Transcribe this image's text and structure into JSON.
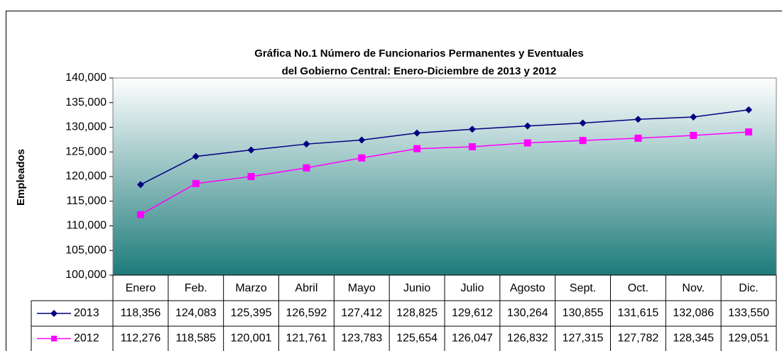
{
  "chart_data": {
    "type": "line",
    "title": "Gráfica No.1 Número de Funcionarios  Permanentes y Eventuales",
    "subtitle": "del Gobierno Central: Enero-Diciembre de 2013 y 2012",
    "y_label": "Empleados",
    "categories": [
      "Enero",
      "Feb.",
      "Marzo",
      "Abril",
      "Mayo",
      "Junio",
      "Julio",
      "Agosto",
      "Sept.",
      "Oct.",
      "Nov.",
      "Dic."
    ],
    "series": [
      {
        "name": "2013",
        "color": "#000080",
        "marker": "diamond",
        "values": [
          118356,
          124083,
          125395,
          126592,
          127412,
          128825,
          129612,
          130264,
          130855,
          131615,
          132086,
          133550
        ],
        "value_labels": [
          "118,356",
          "124,083",
          "125,395",
          "126,592",
          "127,412",
          "128,825",
          "129,612",
          "130,264",
          "130,855",
          "131,615",
          "132,086",
          "133,550"
        ]
      },
      {
        "name": "2012",
        "color": "#ff00ff",
        "marker": "square",
        "values": [
          112276,
          118585,
          120001,
          121761,
          123783,
          125654,
          126047,
          126832,
          127315,
          127782,
          128345,
          129051
        ],
        "value_labels": [
          "112,276",
          "118,585",
          "120,001",
          "121,761",
          "123,783",
          "125,654",
          "126,047",
          "126,832",
          "127,315",
          "127,782",
          "128,345",
          "129,051"
        ]
      }
    ],
    "ylim": [
      100000,
      140000
    ],
    "yticks": [
      {
        "value": 100000,
        "label": "100,000"
      },
      {
        "value": 105000,
        "label": "105,000"
      },
      {
        "value": 110000,
        "label": "110,000"
      },
      {
        "value": 115000,
        "label": "115,000"
      },
      {
        "value": 120000,
        "label": "120,000"
      },
      {
        "value": 125000,
        "label": "125,000"
      },
      {
        "value": 130000,
        "label": "130,000"
      },
      {
        "value": 135000,
        "label": "135,000"
      },
      {
        "value": 140000,
        "label": "140,000"
      }
    ],
    "grid": false
  }
}
